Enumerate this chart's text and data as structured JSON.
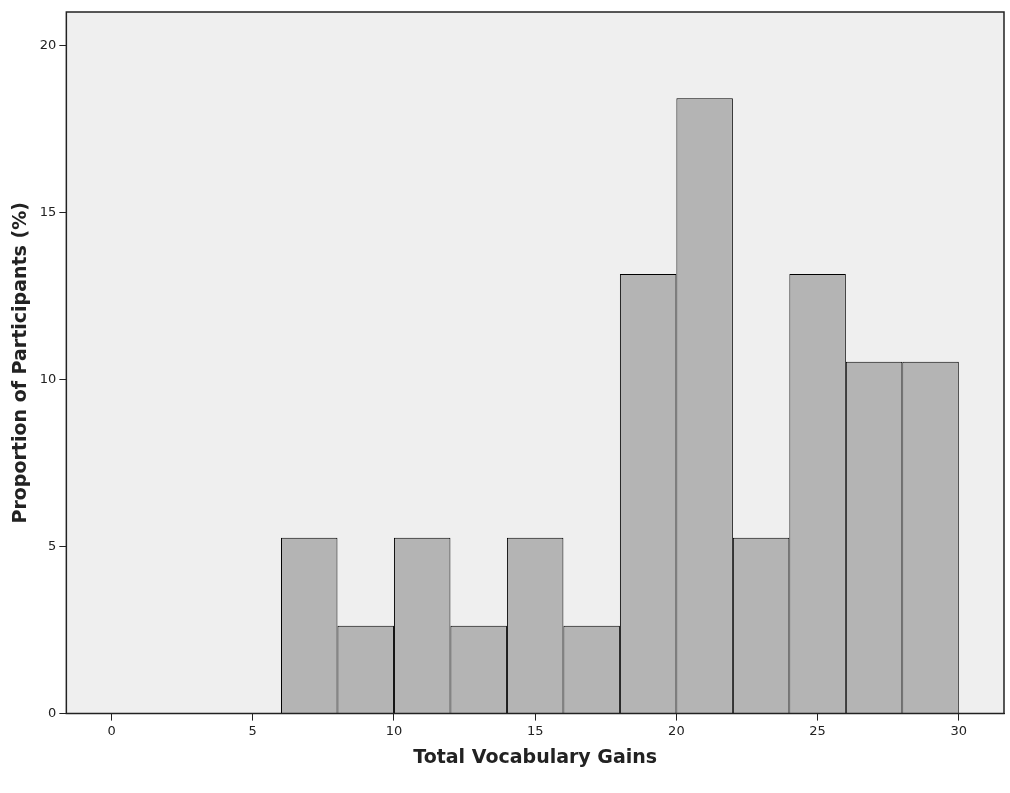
{
  "chart_data": {
    "type": "histogram",
    "xlabel": "Total Vocabulary Gains",
    "ylabel": "Proportion of Participants (%)",
    "bins": [
      6,
      8,
      10,
      12,
      14,
      16,
      18,
      20,
      22,
      24,
      26,
      28,
      30
    ],
    "values": [
      5.26,
      2.63,
      5.26,
      2.63,
      5.26,
      2.63,
      13.16,
      18.42,
      5.26,
      13.16,
      10.53,
      10.53
    ],
    "color": "#b4b4b4",
    "xlim": [
      -1.6,
      31.6
    ],
    "xticks": [
      0,
      5,
      10,
      15,
      20,
      25,
      30
    ],
    "ylim": [
      0,
      21
    ],
    "yticks": [
      0,
      5,
      10,
      15,
      20
    ],
    "grid": false,
    "legend": false
  }
}
